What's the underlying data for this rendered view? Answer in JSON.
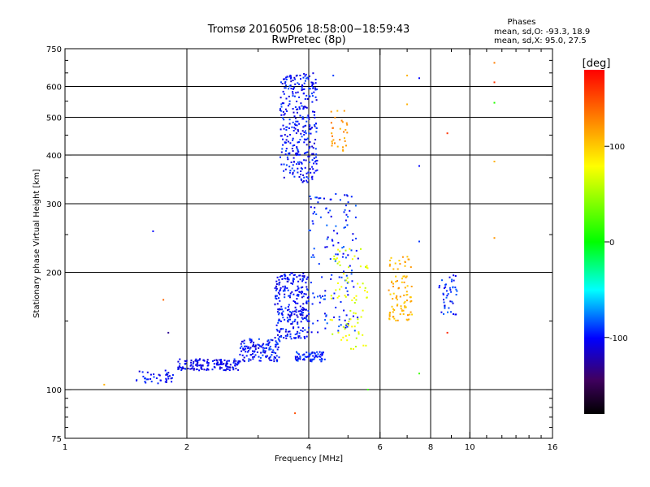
{
  "chart_data": {
    "type": "scatter",
    "title": "Tromsø 20160506 18:58:00−18:59:43",
    "subtitle": "RwPretec (8p)",
    "xlabel": "Frequency [MHz]",
    "ylabel": "Stationary phase Virtual Height [km]",
    "x_scale": "log",
    "y_scale": "log",
    "xlim": [
      1,
      16
    ],
    "ylim": [
      75,
      750
    ],
    "x_ticks": [
      1,
      2,
      4,
      6,
      8,
      10,
      16
    ],
    "y_ticks": [
      75,
      100,
      200,
      300,
      400,
      500,
      600,
      750
    ],
    "grid": true,
    "stats": {
      "header": "Phases",
      "o_line": "mean, sd,O: -93.3, 18.9",
      "x_line": "mean, sd,X:  95.0, 27.5"
    },
    "colorbar": {
      "label": "[deg]",
      "range": [
        -180,
        180
      ],
      "ticks": [
        100,
        0,
        -100
      ],
      "colormap": "rainbow"
    },
    "trace_groups": [
      {
        "x_range": [
          1.5,
          1.85
        ],
        "y_range": [
          103,
          112
        ],
        "phase": -100,
        "count": 40
      },
      {
        "x_range": [
          1.9,
          2.7
        ],
        "y_range": [
          112,
          120
        ],
        "phase": -105,
        "count": 150
      },
      {
        "x_range": [
          2.7,
          3.4
        ],
        "y_range": [
          118,
          135
        ],
        "phase": -100,
        "count": 130
      },
      {
        "x_range": [
          3.3,
          4.0
        ],
        "y_range": [
          135,
          200
        ],
        "phase": -100,
        "count": 260
      },
      {
        "x_range": [
          3.7,
          4.4
        ],
        "y_range": [
          118,
          125
        ],
        "phase": -95,
        "count": 70
      },
      {
        "x_range": [
          4.0,
          5.3
        ],
        "y_range": [
          140,
          320
        ],
        "phase": -95,
        "count": 140
      },
      {
        "x_range": [
          3.4,
          4.2
        ],
        "y_range": [
          340,
          650
        ],
        "phase": -100,
        "count": 330
      },
      {
        "x_range": [
          4.5,
          5.0
        ],
        "y_range": [
          410,
          520
        ],
        "phase": 120,
        "count": 30
      },
      {
        "x_range": [
          4.5,
          5.6
        ],
        "y_range": [
          125,
          230
        ],
        "phase": 70,
        "count": 80
      },
      {
        "x_range": [
          6.3,
          7.2
        ],
        "y_range": [
          150,
          220
        ],
        "phase": 110,
        "count": 90
      },
      {
        "x_range": [
          8.4,
          9.3
        ],
        "y_range": [
          155,
          200
        ],
        "phase": -95,
        "count": 45
      }
    ],
    "isolated_points": [
      {
        "x": 1.25,
        "y": 103,
        "phase": 110
      },
      {
        "x": 1.65,
        "y": 255,
        "phase": -100
      },
      {
        "x": 1.75,
        "y": 170,
        "phase": 140
      },
      {
        "x": 1.8,
        "y": 140,
        "phase": -130
      },
      {
        "x": 3.7,
        "y": 87,
        "phase": 150
      },
      {
        "x": 4.6,
        "y": 640,
        "phase": -90
      },
      {
        "x": 5.6,
        "y": 100,
        "phase": 20
      },
      {
        "x": 7.0,
        "y": 640,
        "phase": 110
      },
      {
        "x": 7.0,
        "y": 540,
        "phase": 110
      },
      {
        "x": 7.5,
        "y": 630,
        "phase": -100
      },
      {
        "x": 7.5,
        "y": 375,
        "phase": -100
      },
      {
        "x": 7.5,
        "y": 240,
        "phase": -90
      },
      {
        "x": 7.5,
        "y": 110,
        "phase": 20
      },
      {
        "x": 8.8,
        "y": 455,
        "phase": 160
      },
      {
        "x": 8.8,
        "y": 140,
        "phase": 165
      },
      {
        "x": 11.5,
        "y": 690,
        "phase": 130
      },
      {
        "x": 11.5,
        "y": 615,
        "phase": 160
      },
      {
        "x": 11.5,
        "y": 545,
        "phase": 10
      },
      {
        "x": 11.5,
        "y": 385,
        "phase": 110
      },
      {
        "x": 11.5,
        "y": 245,
        "phase": 120
      }
    ]
  }
}
